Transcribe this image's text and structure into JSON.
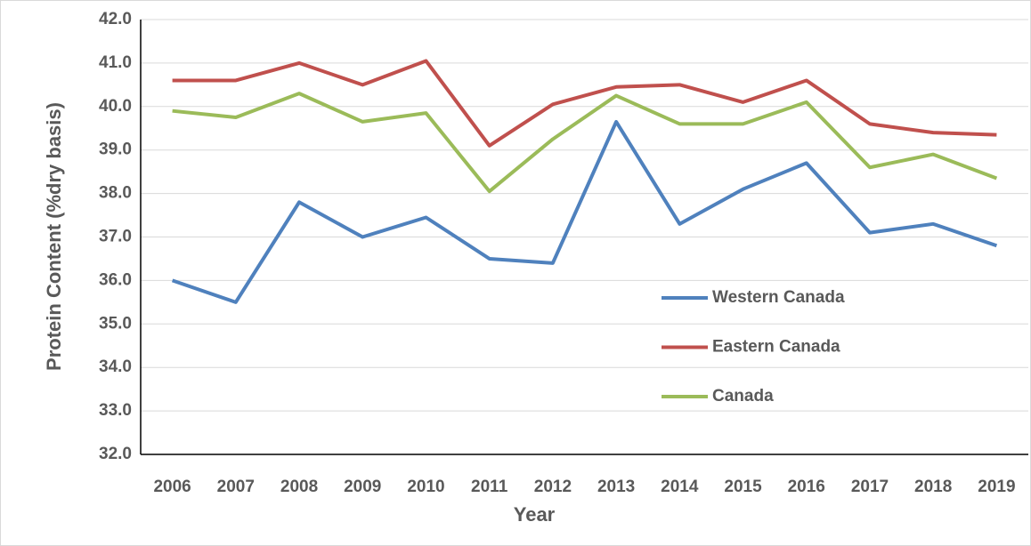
{
  "chart_data": {
    "type": "line",
    "x_label": "Year",
    "y_label": "Protein Content (%dry basis)",
    "categories": [
      "2006",
      "2007",
      "2008",
      "2009",
      "2010",
      "2011",
      "2012",
      "2013",
      "2014",
      "2015",
      "2016",
      "2017",
      "2018",
      "2019"
    ],
    "series": [
      {
        "name": "Western Canada",
        "color": "#4f81bd",
        "values": [
          36.0,
          35.5,
          37.8,
          37.0,
          37.45,
          36.5,
          36.4,
          39.65,
          37.3,
          38.1,
          38.7,
          37.1,
          37.3,
          36.8
        ]
      },
      {
        "name": "Eastern Canada",
        "color": "#c0504d",
        "values": [
          40.6,
          40.6,
          41.0,
          40.5,
          41.05,
          39.1,
          40.05,
          40.45,
          40.5,
          40.1,
          40.6,
          39.6,
          39.4,
          39.35
        ]
      },
      {
        "name": "Canada",
        "color": "#9bbb59",
        "values": [
          39.9,
          39.75,
          40.3,
          39.65,
          39.85,
          38.05,
          39.25,
          40.25,
          39.6,
          39.6,
          40.1,
          38.6,
          38.9,
          38.35
        ]
      }
    ],
    "ylim": [
      32,
      42
    ],
    "yticks": [
      {
        "value": 32,
        "label": "32.0"
      },
      {
        "value": 33,
        "label": "33.0"
      },
      {
        "value": 34,
        "label": "34.0"
      },
      {
        "value": 35,
        "label": "35.0"
      },
      {
        "value": 36,
        "label": "36.0"
      },
      {
        "value": 37,
        "label": "37.0"
      },
      {
        "value": 38,
        "label": "38.0"
      },
      {
        "value": 39,
        "label": "39.0"
      },
      {
        "value": 40,
        "label": "40.0"
      },
      {
        "value": 41,
        "label": "41.0"
      },
      {
        "value": 42,
        "label": "42.0"
      }
    ],
    "grid": true,
    "legend_position": "right"
  }
}
